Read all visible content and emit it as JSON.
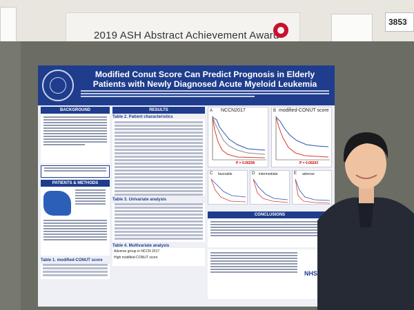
{
  "award_banner": {
    "text": "2019 ASH Abstract Achievement Award"
  },
  "board_number": "3853",
  "poster": {
    "title": "Modified Conut Score Can Predict Prognosis in Elderly Patients with Newly Diagnosed Acute Myeloid Leukemia",
    "sections": {
      "background": "BACKGROUND",
      "patients_methods": "PATIENTS & METHODS",
      "results": "RESULTS",
      "conclusions": "CONCLUSIONS"
    },
    "table_titles": {
      "t1": "Table 1. modified-CONUT score",
      "t2": "Table 2. Patient characteristics",
      "t3": "Table 3. Univariate analysis",
      "t4": "Table 4. Multivariate analysis"
    },
    "km": {
      "left_title": "NCCN2017",
      "right_title": "modified-CONUT score",
      "left_p": "P = 0.00258",
      "right_p": "P = 0.00203",
      "panel_c": "C",
      "panel_d": "D",
      "panel_e": "E",
      "panel_a": "A",
      "panel_b": "B",
      "sub_c": "favorable",
      "sub_d": "intermediate",
      "sub_e": "adverse"
    },
    "multivariate": {
      "row1": "Adverse group in NCCN 2017",
      "row2": "High modified-CONUT score"
    },
    "logo": "NHSG"
  },
  "colors": {
    "poster_header": "#1f3d8c",
    "km_red": "#d83b2b",
    "km_blue": "#2a4fb0"
  }
}
